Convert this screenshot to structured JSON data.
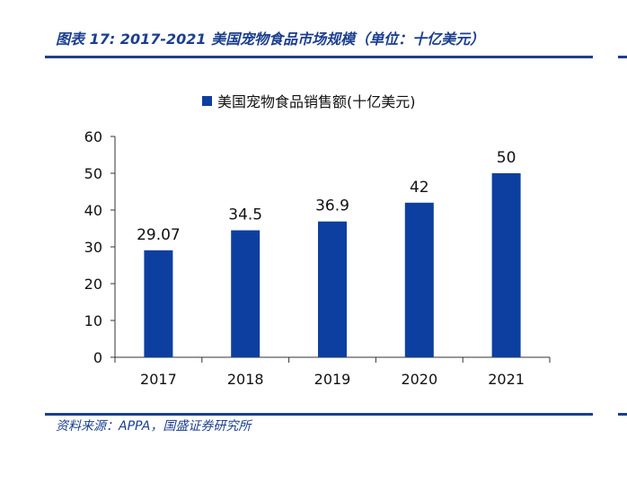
{
  "header": {
    "title": "图表 17:  2017-2021 美国宠物食品市场规模（单位：十亿美元）"
  },
  "footer": {
    "source": "资料来源：APPA，国盛证券研究所"
  },
  "colors": {
    "accent": "#1b3f8f",
    "bar": "#0d3fa0"
  },
  "chart_data": {
    "type": "bar",
    "categories": [
      "2017",
      "2018",
      "2019",
      "2020",
      "2021"
    ],
    "series": [
      {
        "name": "美国宠物食品销售额(十亿美元)",
        "values": [
          29.07,
          34.5,
          36.9,
          42,
          50
        ],
        "labels": [
          "29.07",
          "34.5",
          "36.9",
          "42",
          "50"
        ]
      }
    ],
    "ylim": [
      0,
      60
    ],
    "yticks": [
      0,
      10,
      20,
      30,
      40,
      50,
      60
    ],
    "legend": "top-center",
    "grid": false
  }
}
